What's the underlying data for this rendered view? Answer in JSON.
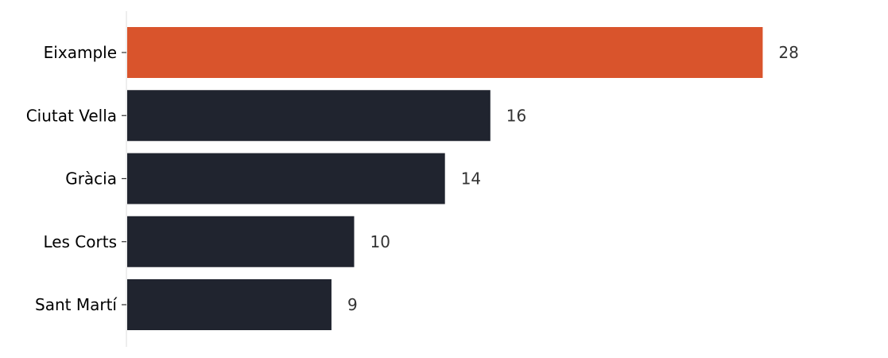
{
  "chart_data": {
    "type": "bar",
    "orientation": "horizontal",
    "categories": [
      "Eixample",
      "Ciutat Vella",
      "Gràcia",
      "Les Corts",
      "Sant Martí"
    ],
    "values": [
      28,
      16,
      14,
      10,
      9
    ],
    "value_labels": [
      "28",
      "16",
      "14",
      "10",
      "9"
    ],
    "title": "",
    "xlabel": "",
    "ylabel": "",
    "xlim": [
      0,
      32.5
    ],
    "grid": false,
    "legend": "none",
    "highlight_index": 0,
    "colors": {
      "highlight": "#d9542c",
      "default": "#20242f",
      "axis": "#dddddd",
      "tick": "#333333",
      "value_text": "#333333"
    }
  }
}
